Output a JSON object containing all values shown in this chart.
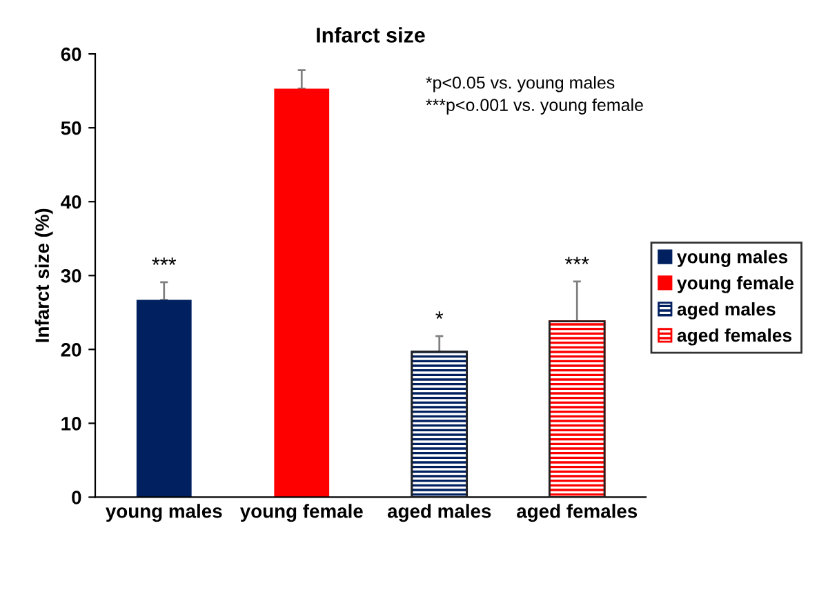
{
  "chart_data": {
    "type": "bar",
    "title": "Infarct size",
    "ylabel": "Infarct size (%)",
    "categories": [
      "young males",
      "young female",
      "aged males",
      "aged females"
    ],
    "series": [
      {
        "name": "young males",
        "color": "#002060",
        "values": [
          26.7,
          null,
          null,
          null
        ],
        "errors": [
          2.4,
          null,
          null,
          null
        ]
      },
      {
        "name": "young female",
        "color": "#ff0000",
        "values": [
          null,
          55.3,
          null,
          null
        ],
        "errors": [
          null,
          2.5,
          null,
          null
        ]
      },
      {
        "name": "aged males",
        "color": "#002060",
        "values": [
          null,
          null,
          19.7,
          null
        ],
        "errors": [
          null,
          null,
          2.1,
          null
        ]
      },
      {
        "name": "aged females",
        "color": "#ff0000",
        "values": [
          null,
          null,
          null,
          23.8
        ],
        "errors": [
          null,
          null,
          null,
          5.4
        ]
      }
    ],
    "ylim": [
      0,
      60
    ],
    "yticks": [
      0,
      10,
      20,
      30,
      40,
      50,
      60
    ],
    "grid": false,
    "legend": "right",
    "annotations": [
      {
        "text": "***",
        "x": "young males",
        "y": 29.1
      },
      {
        "text": "*",
        "x": "aged males",
        "y": 21.8
      },
      {
        "text": "***",
        "x": "aged females",
        "y": 29.2
      },
      "*p<0.05 vs. young males\n***p<o.001 vs. young female"
    ]
  }
}
